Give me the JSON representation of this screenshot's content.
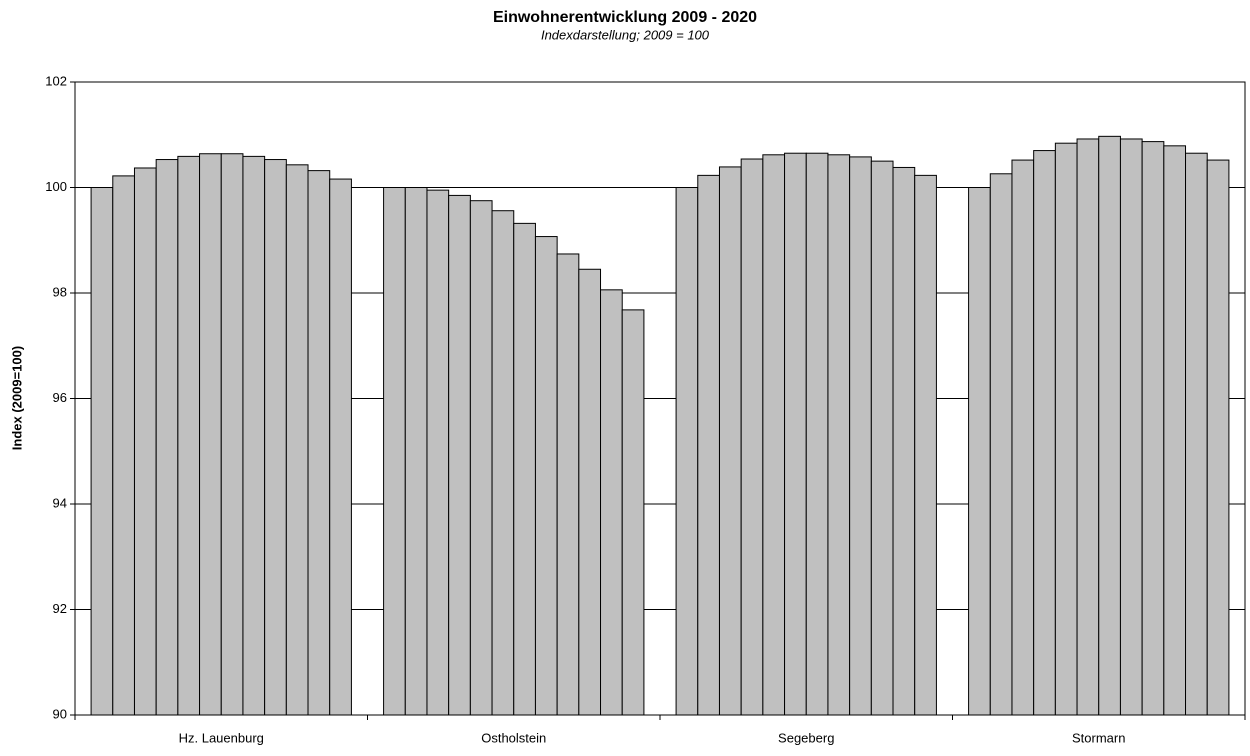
{
  "chart_data": {
    "type": "bar",
    "title": "Einwohnerentwicklung 2009 - 2020",
    "subtitle": "Indexdarstellung; 2009 = 100",
    "y_label": "Index (2009=100)",
    "categories": [
      "Hz. Lauenburg",
      "Ostholstein",
      "Segeberg",
      "Stormarn"
    ],
    "series": [
      {
        "color": "#c0c0c0",
        "values": [
          100.0,
          100.0,
          100.0,
          100.0
        ]
      },
      {
        "color": "#c0c0c0",
        "values": [
          100.22,
          100.0,
          100.23,
          100.26
        ]
      },
      {
        "color": "#c0c0c0",
        "values": [
          100.37,
          99.95,
          100.39,
          100.52
        ]
      },
      {
        "color": "#c0c0c0",
        "values": [
          100.53,
          99.85,
          100.54,
          100.7
        ]
      },
      {
        "color": "#c0c0c0",
        "values": [
          100.59,
          99.75,
          100.62,
          100.84
        ]
      },
      {
        "color": "#c0c0c0",
        "values": [
          100.64,
          99.56,
          100.65,
          100.92
        ]
      },
      {
        "color": "#c0c0c0",
        "values": [
          100.64,
          99.32,
          100.65,
          100.97
        ]
      },
      {
        "color": "#c0c0c0",
        "values": [
          100.59,
          99.07,
          100.62,
          100.92
        ]
      },
      {
        "color": "#c0c0c0",
        "values": [
          100.53,
          98.74,
          100.58,
          100.87
        ]
      },
      {
        "color": "#c0c0c0",
        "values": [
          100.43,
          98.45,
          100.5,
          100.79
        ]
      },
      {
        "color": "#c0c0c0",
        "values": [
          100.32,
          98.06,
          100.38,
          100.65
        ]
      },
      {
        "color": "#c0c0c0",
        "values": [
          100.16,
          97.68,
          100.23,
          100.52
        ]
      }
    ],
    "ylim": [
      90,
      102
    ],
    "yticks": [
      90,
      92,
      94,
      96,
      98,
      100,
      102
    ],
    "grid": true
  }
}
